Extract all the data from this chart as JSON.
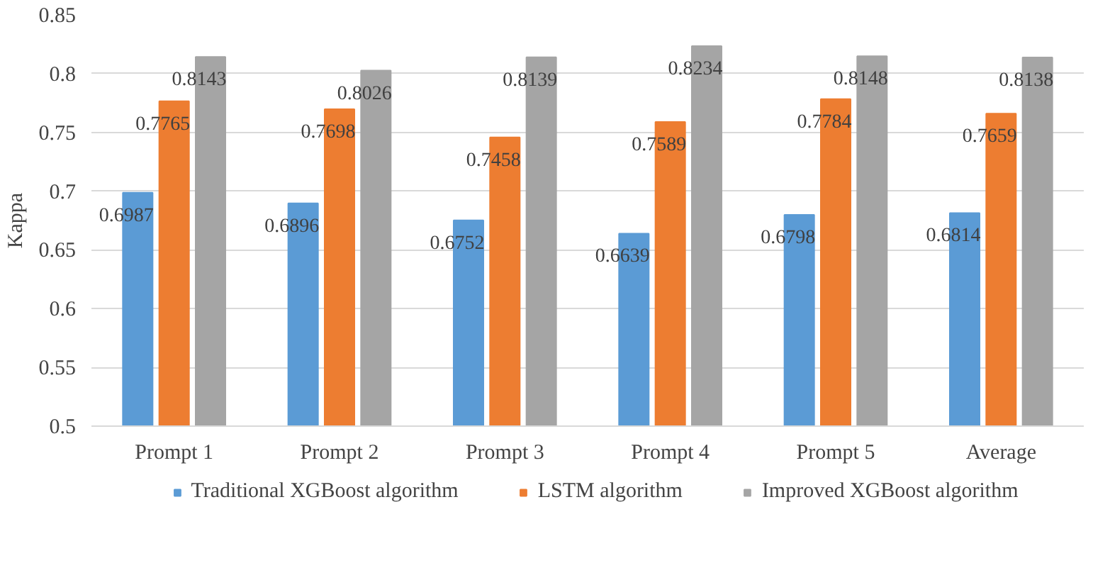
{
  "chart_data": {
    "type": "bar",
    "ylabel": "Kappa",
    "categories": [
      "Prompt 1",
      "Prompt 2",
      "Prompt 3",
      "Prompt 4",
      "Prompt 5",
      "Average"
    ],
    "series": [
      {
        "name": "Traditional XGBoost algorithm",
        "color": "#5b9bd5",
        "values": [
          0.6987,
          0.6896,
          0.6752,
          0.6639,
          0.6798,
          0.6814
        ]
      },
      {
        "name": "LSTM algorithm",
        "color": "#ed7d31",
        "values": [
          0.7765,
          0.7698,
          0.7458,
          0.7589,
          0.7784,
          0.7659
        ]
      },
      {
        "name": "Improved XGBoost algorithm",
        "color": "#a5a5a5",
        "values": [
          0.8143,
          0.8026,
          0.8139,
          0.8234,
          0.8148,
          0.8138
        ]
      }
    ],
    "ylim": [
      0.5,
      0.85
    ],
    "yticks": [
      0.5,
      0.55,
      0.6,
      0.65,
      0.7,
      0.75,
      0.8,
      0.85
    ],
    "grid": "y",
    "legend": "bottom",
    "data_labels": true
  }
}
